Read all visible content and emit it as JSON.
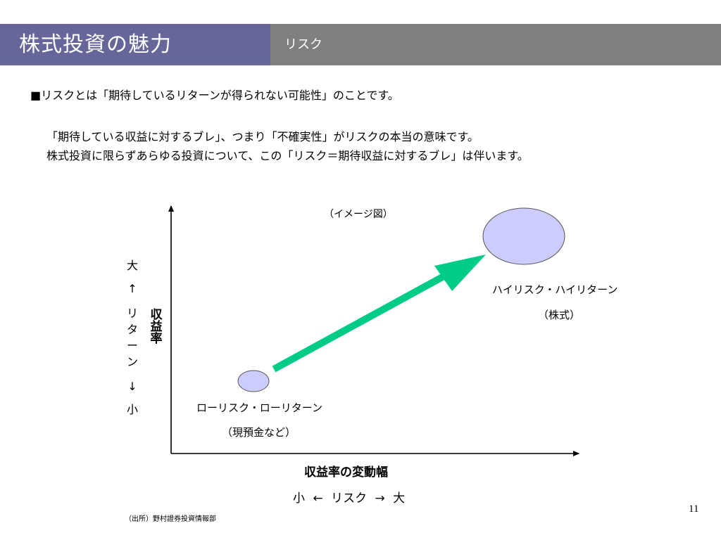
{
  "header": {
    "title": "株式投資の魅力",
    "section": "リスク"
  },
  "bullet": "■リスクとは「期待しているリターンが得られない可能性」のことです。",
  "paragraph": [
    "「期待している収益に対するブレ」、つまり「不確実性」がリスクの本当の意味です。",
    "株式投資に限らずあらゆる投資について、この「リスク＝期待収益に対するブレ」は伴います。"
  ],
  "diagram": {
    "note": "（イメージ図）",
    "y_axis_label": "収益率",
    "y_scale": [
      "大",
      "↑",
      "リ",
      "タ",
      "ー",
      "ン",
      "↓",
      "小"
    ],
    "x_axis_label": "収益率の変動幅",
    "x_scale": "小 ← リスク → 大",
    "low": {
      "label": "ローリスク・ローリターン",
      "sub": "（現預金など）"
    },
    "high": {
      "label": "ハイリスク・ハイリターン",
      "sub": "（株式）"
    },
    "colors": {
      "bubble": "#ccccff",
      "arrow": "#00cc88",
      "axis": "#000000"
    }
  },
  "footer": {
    "source": "（出所）野村證券投資情報部",
    "page": "11"
  }
}
